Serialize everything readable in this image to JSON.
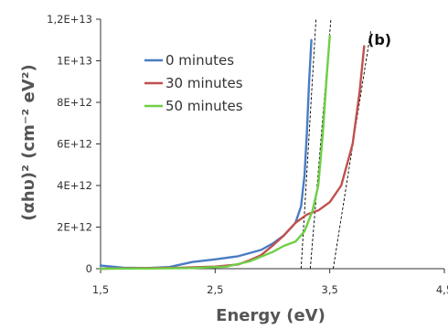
{
  "chart_data": {
    "type": "line",
    "panel_label": "(b)",
    "xlabel": "Energy (eV)",
    "ylabel": "(αhυ)² (cm⁻² eV²)",
    "xlim": [
      1.5,
      4.5
    ],
    "ylim": [
      0,
      12000000000000.0
    ],
    "x_ticks": [
      "1,5",
      "2,5",
      "3,5",
      "4,5"
    ],
    "x_tick_values": [
      1.5,
      2.5,
      3.5,
      4.5
    ],
    "y_ticks": [
      "0",
      "2E+12",
      "4E+12",
      "6E+12",
      "8E+12",
      "1E+13",
      "1,2E+13"
    ],
    "y_tick_values": [
      0,
      2000000000000.0,
      4000000000000.0,
      6000000000000.0,
      8000000000000.0,
      10000000000000.0,
      12000000000000.0
    ],
    "grid": false,
    "legend_position": "top-left",
    "series": [
      {
        "name": "0 minutes",
        "color": "#4a7cc4",
        "points": [
          [
            1.5,
            150000000000.0
          ],
          [
            1.7,
            50000000000.0
          ],
          [
            1.9,
            30000000000.0
          ],
          [
            2.1,
            80000000000.0
          ],
          [
            2.3,
            320000000000.0
          ],
          [
            2.5,
            450000000000.0
          ],
          [
            2.7,
            600000000000.0
          ],
          [
            2.9,
            900000000000.0
          ],
          [
            3.0,
            1200000000000.0
          ],
          [
            3.1,
            1600000000000.0
          ],
          [
            3.2,
            2200000000000.0
          ],
          [
            3.25,
            3000000000000.0
          ],
          [
            3.28,
            4500000000000.0
          ],
          [
            3.3,
            6500000000000.0
          ],
          [
            3.32,
            9000000000000.0
          ],
          [
            3.34,
            11000000000000.0
          ]
        ]
      },
      {
        "name": "30 minutes",
        "color": "#c0504d",
        "points": [
          [
            1.5,
            0
          ],
          [
            1.9,
            30000000000.0
          ],
          [
            2.2,
            50000000000.0
          ],
          [
            2.5,
            100000000000.0
          ],
          [
            2.7,
            200000000000.0
          ],
          [
            2.8,
            400000000000.0
          ],
          [
            2.9,
            650000000000.0
          ],
          [
            3.0,
            1100000000000.0
          ],
          [
            3.1,
            1600000000000.0
          ],
          [
            3.2,
            2200000000000.0
          ],
          [
            3.3,
            2600000000000.0
          ],
          [
            3.4,
            2800000000000.0
          ],
          [
            3.5,
            3200000000000.0
          ],
          [
            3.6,
            4000000000000.0
          ],
          [
            3.7,
            6000000000000.0
          ],
          [
            3.76,
            8500000000000.0
          ],
          [
            3.8,
            10700000000000.0
          ]
        ]
      },
      {
        "name": "50 minutes",
        "color": "#6ecf45",
        "points": [
          [
            1.5,
            0
          ],
          [
            1.9,
            10000000000.0
          ],
          [
            2.3,
            30000000000.0
          ],
          [
            2.6,
            100000000000.0
          ],
          [
            2.8,
            350000000000.0
          ],
          [
            3.0,
            800000000000.0
          ],
          [
            3.1,
            1100000000000.0
          ],
          [
            3.2,
            1300000000000.0
          ],
          [
            3.28,
            1800000000000.0
          ],
          [
            3.35,
            2800000000000.0
          ],
          [
            3.4,
            4000000000000.0
          ],
          [
            3.44,
            6500000000000.0
          ],
          [
            3.47,
            9000000000000.0
          ],
          [
            3.5,
            11200000000000.0
          ]
        ]
      }
    ],
    "tangent_lines": [
      {
        "x1": 3.25,
        "y1": 0,
        "x2": 3.38,
        "y2": 12000000000000.0,
        "color": "#000000"
      },
      {
        "x1": 3.33,
        "y1": 0,
        "x2": 3.51,
        "y2": 12000000000000.0,
        "color": "#000000"
      },
      {
        "x1": 3.53,
        "y1": 0,
        "x2": 3.86,
        "y2": 11500000000000.0,
        "color": "#000000"
      }
    ]
  }
}
